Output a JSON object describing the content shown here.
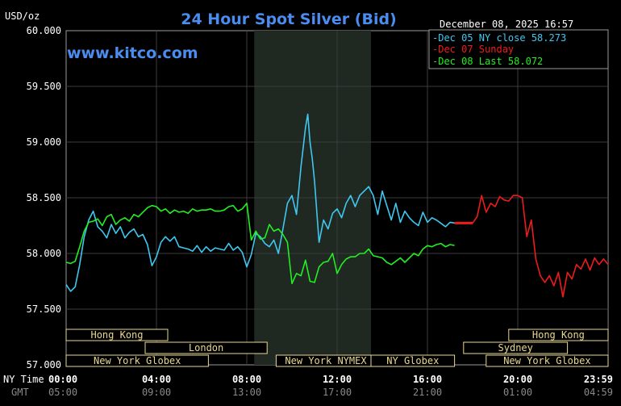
{
  "chart_data": {
    "type": "line",
    "title": "24 Hour Spot Silver (Bid)",
    "ylabel": "USD/oz",
    "watermark": "www.kitco.com",
    "timestamp": "December 08, 2025 16:57",
    "ylim": [
      57000,
      60000
    ],
    "xlim": [
      0,
      24
    ],
    "y_ticks": [
      {
        "value": 60000,
        "label": "60.000"
      },
      {
        "value": 59500,
        "label": "59.500"
      },
      {
        "value": 59000,
        "label": "59.000"
      },
      {
        "value": 58500,
        "label": "58.500"
      },
      {
        "value": 58000,
        "label": "58.000"
      },
      {
        "value": 57500,
        "label": "57.500"
      },
      {
        "value": 57000,
        "label": "57.000"
      }
    ],
    "x_ticks": [
      {
        "value": 0,
        "ny": "00:00",
        "gmt": "05:00"
      },
      {
        "value": 4,
        "ny": "04:00",
        "gmt": "09:00"
      },
      {
        "value": 8,
        "ny": "08:00",
        "gmt": "13:00"
      },
      {
        "value": 12,
        "ny": "12:00",
        "gmt": "17:00"
      },
      {
        "value": 16,
        "ny": "16:00",
        "gmt": "21:00"
      },
      {
        "value": 20,
        "ny": "20:00",
        "gmt": "01:00"
      },
      {
        "value": 23.983,
        "ny": "23:59",
        "gmt": "04:59"
      }
    ],
    "x_row_labels": {
      "ny": "NY Time",
      "gmt": "GMT"
    },
    "shaded_region": [
      8.33,
      13.5
    ],
    "grid": true,
    "legend_position": "top-right",
    "series": [
      {
        "name": "Dec 05 NY close 58.273",
        "color": "#3ec8f0",
        "x": [
          0.0,
          0.2,
          0.4,
          0.6,
          0.8,
          1.0,
          1.2,
          1.4,
          1.6,
          1.8,
          2.0,
          2.2,
          2.4,
          2.6,
          2.8,
          3.0,
          3.2,
          3.4,
          3.6,
          3.8,
          4.0,
          4.2,
          4.4,
          4.6,
          4.8,
          5.0,
          5.2,
          5.4,
          5.6,
          5.8,
          6.0,
          6.2,
          6.4,
          6.6,
          6.8,
          7.0,
          7.2,
          7.4,
          7.6,
          7.8,
          8.0,
          8.2,
          8.4,
          8.6,
          8.8,
          9.0,
          9.2,
          9.4,
          9.6,
          9.8,
          10.0,
          10.2,
          10.4,
          10.6,
          10.7,
          10.8,
          10.9,
          11.0,
          11.2,
          11.4,
          11.6,
          11.8,
          12.0,
          12.2,
          12.4,
          12.6,
          12.8,
          13.0,
          13.2,
          13.4,
          13.6,
          13.8,
          14.0,
          14.2,
          14.4,
          14.6,
          14.8,
          15.0,
          15.2,
          15.4,
          15.6,
          15.8,
          16.0,
          16.2,
          16.4,
          16.6,
          16.8,
          17.0,
          17.2
        ],
        "values": [
          57720,
          57660,
          57700,
          57900,
          58150,
          58300,
          58380,
          58240,
          58200,
          58140,
          58260,
          58180,
          58240,
          58140,
          58190,
          58220,
          58150,
          58170,
          58080,
          57890,
          57970,
          58100,
          58150,
          58110,
          58150,
          58060,
          58050,
          58040,
          58020,
          58070,
          58010,
          58060,
          58020,
          58050,
          58040,
          58030,
          58090,
          58030,
          58060,
          58010,
          57880,
          57990,
          58180,
          58150,
          58090,
          58060,
          58120,
          58000,
          58220,
          58450,
          58520,
          58350,
          58780,
          59130,
          59250,
          59000,
          58850,
          58650,
          58100,
          58300,
          58220,
          58360,
          58400,
          58320,
          58450,
          58520,
          58420,
          58520,
          58560,
          58600,
          58520,
          58350,
          58560,
          58430,
          58300,
          58450,
          58280,
          58380,
          58320,
          58280,
          58250,
          58370,
          58280,
          58320,
          58300,
          58270,
          58240,
          58280,
          58273
        ]
      },
      {
        "name": "Dec 07 Sunday",
        "color": "#ee1b1b",
        "x": [
          17.2,
          17.6,
          18.0,
          18.2,
          18.4,
          18.6,
          18.8,
          19.0,
          19.2,
          19.4,
          19.6,
          19.8,
          20.0,
          20.2,
          20.4,
          20.6,
          20.8,
          21.0,
          21.2,
          21.4,
          21.6,
          21.8,
          22.0,
          22.2,
          22.4,
          22.6,
          22.8,
          23.0,
          23.2,
          23.4,
          23.6,
          23.8,
          24.0
        ],
        "values": [
          58273,
          58273,
          58273,
          58330,
          58520,
          58370,
          58450,
          58420,
          58510,
          58480,
          58470,
          58520,
          58520,
          58500,
          58150,
          58300,
          57950,
          57800,
          57740,
          57800,
          57710,
          57830,
          57610,
          57830,
          57770,
          57900,
          57860,
          57950,
          57850,
          57960,
          57900,
          57950,
          57900
        ]
      },
      {
        "name": "Dec 08 Last 58.072",
        "color": "#22ee22",
        "x": [
          0.0,
          0.2,
          0.4,
          0.6,
          0.8,
          1.0,
          1.2,
          1.4,
          1.6,
          1.8,
          2.0,
          2.2,
          2.4,
          2.6,
          2.8,
          3.0,
          3.2,
          3.4,
          3.6,
          3.8,
          4.0,
          4.2,
          4.4,
          4.6,
          4.8,
          5.0,
          5.2,
          5.4,
          5.6,
          5.8,
          6.0,
          6.2,
          6.4,
          6.6,
          6.8,
          7.0,
          7.2,
          7.4,
          7.6,
          7.8,
          8.0,
          8.2,
          8.4,
          8.6,
          8.8,
          9.0,
          9.2,
          9.4,
          9.6,
          9.8,
          10.0,
          10.2,
          10.4,
          10.6,
          10.8,
          11.0,
          11.2,
          11.4,
          11.6,
          11.8,
          12.0,
          12.2,
          12.4,
          12.6,
          12.8,
          13.0,
          13.2,
          13.4,
          13.6,
          13.8,
          14.0,
          14.2,
          14.4,
          14.6,
          14.8,
          15.0,
          15.2,
          15.4,
          15.6,
          15.8,
          16.0,
          16.2,
          16.4,
          16.6,
          16.8,
          17.0,
          17.2
        ],
        "values": [
          57920,
          57910,
          57930,
          58060,
          58200,
          58280,
          58290,
          58310,
          58250,
          58330,
          58350,
          58260,
          58300,
          58320,
          58290,
          58350,
          58330,
          58370,
          58410,
          58430,
          58420,
          58380,
          58400,
          58360,
          58390,
          58370,
          58380,
          58360,
          58400,
          58380,
          58390,
          58390,
          58400,
          58380,
          58380,
          58390,
          58420,
          58430,
          58380,
          58400,
          58450,
          58120,
          58200,
          58130,
          58140,
          58260,
          58200,
          58220,
          58170,
          58100,
          57730,
          57820,
          57800,
          57940,
          57750,
          57740,
          57880,
          57920,
          57930,
          58000,
          57820,
          57900,
          57950,
          57970,
          57970,
          58000,
          58000,
          58040,
          57980,
          57970,
          57960,
          57920,
          57900,
          57930,
          57960,
          57920,
          57960,
          58000,
          57980,
          58040,
          58070,
          58060,
          58080,
          58090,
          58060,
          58080,
          58072
        ]
      }
    ],
    "sessions": [
      {
        "name": "Hong Kong",
        "row": 0,
        "start": 0,
        "end": 4.5
      },
      {
        "name": "London",
        "row": 1,
        "start": 3.5,
        "end": 8.9
      },
      {
        "name": "New York Globex",
        "row": 2,
        "start": 0,
        "end": 6.3
      },
      {
        "name": "New York NYMEX",
        "row": 2,
        "start": 9.3,
        "end": 13.7
      },
      {
        "name": "NY Globex",
        "row": 2,
        "start": 13.5,
        "end": 17.2
      },
      {
        "name": "Hong Kong",
        "row": 0,
        "start": 19.6,
        "end": 24
      },
      {
        "name": "Sydney",
        "row": 1,
        "start": 17.6,
        "end": 22.2
      },
      {
        "name": "New York Globex",
        "row": 2,
        "start": 18.6,
        "end": 24
      }
    ]
  }
}
